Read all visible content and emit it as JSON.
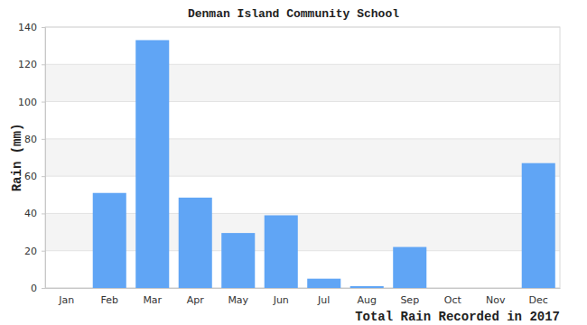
{
  "chart_data": {
    "type": "bar",
    "title": "Denman Island Community School",
    "x_label": "Total Rain Recorded in 2017",
    "y_label": "Rain (mm)",
    "categories": [
      "Jan",
      "Feb",
      "Mar",
      "Apr",
      "May",
      "Jun",
      "Jul",
      "Aug",
      "Sep",
      "Oct",
      "Nov",
      "Dec"
    ],
    "values": [
      0,
      51,
      133,
      48.5,
      29.5,
      39,
      5,
      1,
      22,
      0,
      0,
      67
    ],
    "color": "#60a5f5",
    "ylim": [
      0,
      140
    ],
    "yticks": [
      0,
      20,
      40,
      60,
      80,
      100,
      120,
      140
    ],
    "grid": true
  }
}
